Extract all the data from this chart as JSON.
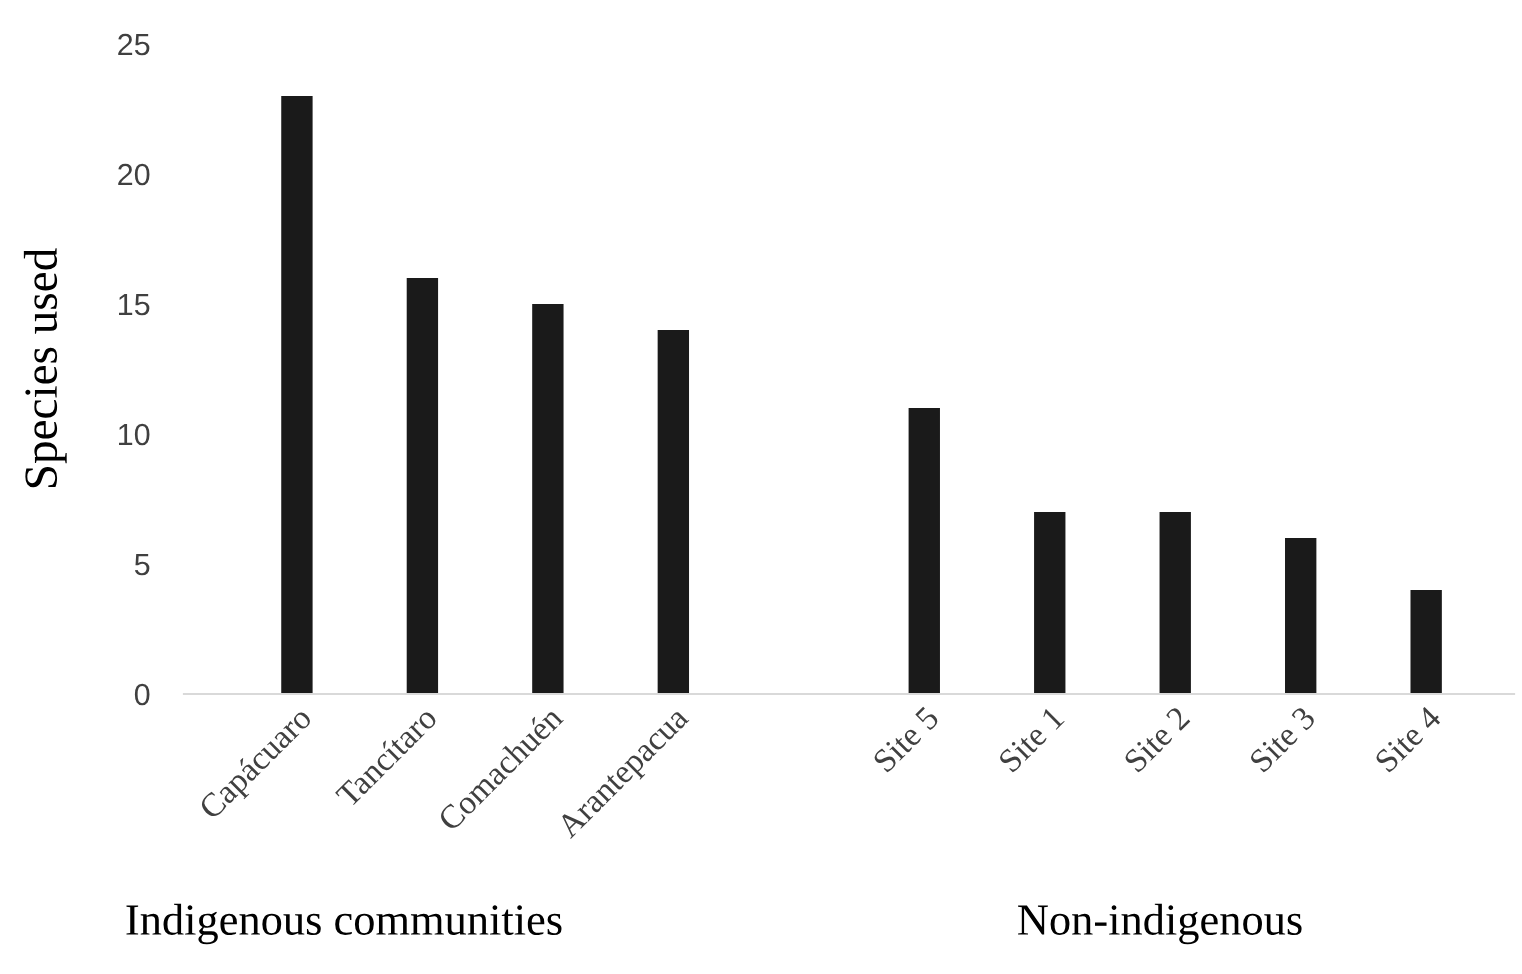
{
  "chart_data": {
    "type": "bar",
    "ylabel": "Species used",
    "categories": [
      "Capácuaro",
      "Tancítaro",
      "Comachuén",
      "Arantepacua",
      null,
      "Site 5",
      "Site 1",
      "Site 2",
      "Site 3",
      "Site 4"
    ],
    "values": [
      23,
      16,
      15,
      14,
      null,
      11,
      7,
      7,
      6,
      4
    ],
    "color": "#1a1a1a",
    "ylim": [
      0,
      25
    ],
    "yticks": [
      0,
      5,
      10,
      15,
      20,
      25
    ],
    "grid": false,
    "annotations": [
      "Indigenous communities",
      "Non-indigenous"
    ]
  }
}
